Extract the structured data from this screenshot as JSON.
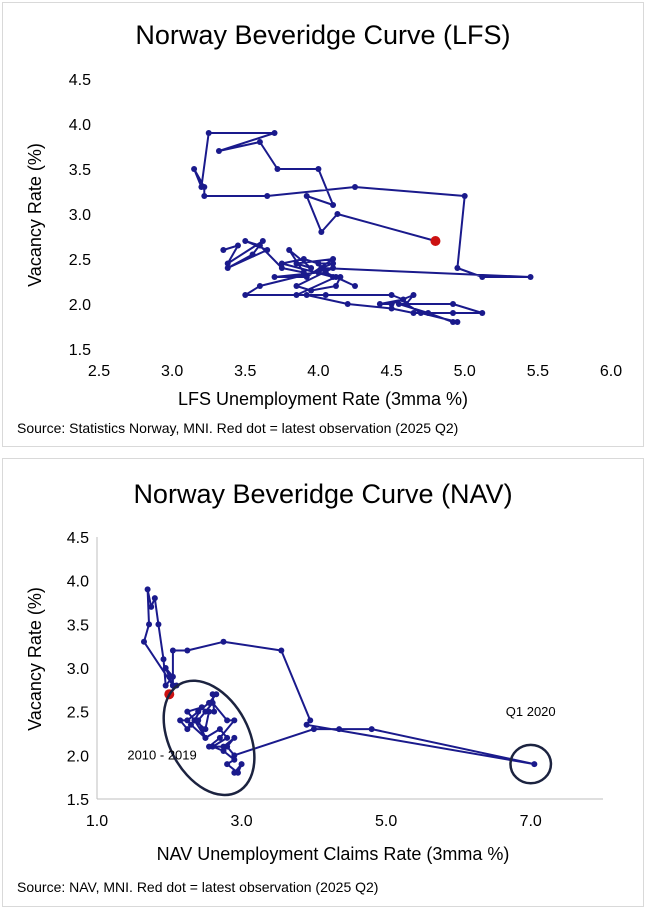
{
  "chart_data": [
    {
      "type": "scatter",
      "title": "Norway Beveridge Curve (LFS)",
      "xlabel": "LFS Unemployment  Rate (3mma %)",
      "ylabel": "Vacancy Rate (%)",
      "xlim": [
        2.5,
        6.0
      ],
      "ylim": [
        1.5,
        4.5
      ],
      "xticks": [
        "2.5",
        "3.0",
        "3.5",
        "4.0",
        "4.5",
        "5.0",
        "5.5",
        "6.0"
      ],
      "yticks": [
        "1.5",
        "2.0",
        "2.5",
        "3.0",
        "3.5",
        "4.0",
        "4.5"
      ],
      "source": "Source: Statistics Norway, MNI. Red dot = latest observation  (2025 Q2)",
      "series": [
        {
          "name": "Beveridge curve (LFS)",
          "color": "#1a1a8c",
          "points": [
            [
              3.35,
              2.6
            ],
            [
              3.45,
              2.65
            ],
            [
              3.38,
              2.45
            ],
            [
              3.62,
              2.7
            ],
            [
              3.55,
              2.55
            ],
            [
              3.38,
              2.4
            ],
            [
              3.65,
              2.6
            ],
            [
              3.5,
              2.7
            ],
            [
              3.6,
              2.65
            ],
            [
              3.75,
              2.4
            ],
            [
              3.9,
              2.35
            ],
            [
              3.8,
              2.6
            ],
            [
              3.95,
              2.4
            ],
            [
              3.85,
              2.45
            ],
            [
              4.1,
              2.5
            ],
            [
              3.92,
              2.3
            ],
            [
              3.7,
              2.3
            ],
            [
              4.0,
              2.35
            ],
            [
              4.15,
              2.3
            ],
            [
              4.12,
              2.2
            ],
            [
              3.95,
              2.15
            ],
            [
              3.85,
              2.2
            ],
            [
              4.1,
              2.4
            ],
            [
              3.6,
              2.2
            ],
            [
              3.5,
              2.1
            ],
            [
              4.05,
              2.1
            ],
            [
              4.5,
              2.1
            ],
            [
              4.58,
              2.05
            ],
            [
              4.42,
              2.0
            ],
            [
              4.5,
              2.0
            ],
            [
              4.65,
              2.1
            ],
            [
              4.6,
              2.0
            ],
            [
              4.7,
              1.9
            ],
            [
              4.95,
              1.8
            ],
            [
              4.92,
              1.8
            ],
            [
              4.75,
              1.9
            ],
            [
              4.55,
              2.0
            ],
            [
              4.92,
              2.0
            ],
            [
              5.12,
              1.9
            ],
            [
              4.92,
              1.9
            ],
            [
              4.65,
              1.9
            ],
            [
              4.5,
              1.95
            ],
            [
              4.2,
              2.0
            ],
            [
              3.92,
              2.1
            ],
            [
              3.85,
              2.1
            ],
            [
              4.12,
              2.3
            ],
            [
              4.25,
              2.2
            ],
            [
              4.05,
              2.35
            ],
            [
              4.1,
              2.3
            ],
            [
              3.75,
              2.45
            ],
            [
              3.9,
              2.5
            ],
            [
              4.0,
              2.45
            ],
            [
              4.1,
              2.45
            ],
            [
              4.02,
              2.4
            ],
            [
              5.45,
              2.3
            ],
            [
              5.12,
              2.3
            ],
            [
              4.95,
              2.4
            ],
            [
              5.0,
              3.2
            ],
            [
              4.25,
              3.3
            ],
            [
              3.65,
              3.2
            ],
            [
              3.22,
              3.2
            ],
            [
              3.22,
              3.3
            ],
            [
              3.15,
              3.5
            ],
            [
              3.2,
              3.3
            ],
            [
              3.25,
              3.9
            ],
            [
              3.7,
              3.9
            ],
            [
              3.32,
              3.7
            ],
            [
              3.6,
              3.8
            ],
            [
              3.72,
              3.5
            ],
            [
              4.0,
              3.5
            ],
            [
              4.1,
              3.1
            ],
            [
              3.92,
              3.2
            ],
            [
              4.02,
              2.8
            ],
            [
              4.13,
              3.0
            ],
            [
              4.8,
              2.7
            ]
          ],
          "latest": [
            4.8,
            2.7
          ],
          "latest_color": "#cc1111"
        }
      ]
    },
    {
      "type": "scatter",
      "title": "Norway Beveridge Curve (NAV)",
      "xlabel": "NAV Unemployment Claims Rate (3mma %)",
      "ylabel": "Vacancy Rate (%)",
      "xlim": [
        1.0,
        8.0
      ],
      "ylim": [
        1.5,
        4.5
      ],
      "xticks": [
        "1.0",
        "3.0",
        "5.0",
        "7.0"
      ],
      "yticks": [
        "1.5",
        "2.0",
        "2.5",
        "3.0",
        "3.5",
        "4.0",
        "4.5"
      ],
      "source": "Source: NAV, MNI.  Red dot = latest observation (2025 Q2)",
      "annotations": [
        {
          "text": "2010 - 2019",
          "x": 1.9,
          "y": 1.95
        },
        {
          "text": "Q1 2020",
          "x": 7.0,
          "y": 2.45
        }
      ],
      "ellipses": [
        {
          "cx": 2.55,
          "cy": 2.2,
          "rx": 0.55,
          "ry": 0.7,
          "rotation_deg": -28
        },
        {
          "cx": 7.0,
          "cy": 1.9,
          "rx": 0.28,
          "ry": 0.22,
          "rotation_deg": 0
        }
      ],
      "series": [
        {
          "name": "Beveridge curve (NAV)",
          "color": "#1a1a8c",
          "points": [
            [
              2.9,
              1.8
            ],
            [
              3.0,
              1.9
            ],
            [
              2.95,
              1.8
            ],
            [
              2.8,
              1.9
            ],
            [
              2.9,
              1.95
            ],
            [
              2.75,
              2.05
            ],
            [
              2.6,
              2.1
            ],
            [
              2.8,
              2.2
            ],
            [
              2.7,
              2.3
            ],
            [
              2.5,
              2.2
            ],
            [
              2.35,
              2.4
            ],
            [
              2.25,
              2.5
            ],
            [
              2.45,
              2.55
            ],
            [
              2.35,
              2.4
            ],
            [
              2.5,
              2.3
            ],
            [
              2.55,
              2.5
            ],
            [
              2.62,
              2.5
            ],
            [
              2.6,
              2.7
            ],
            [
              2.65,
              2.7
            ],
            [
              2.55,
              2.6
            ],
            [
              2.4,
              2.5
            ],
            [
              2.25,
              2.4
            ],
            [
              2.15,
              2.4
            ],
            [
              2.25,
              2.3
            ],
            [
              2.3,
              2.35
            ],
            [
              2.5,
              2.2
            ],
            [
              2.4,
              2.4
            ],
            [
              2.5,
              2.5
            ],
            [
              2.6,
              2.6
            ],
            [
              2.8,
              2.4
            ],
            [
              2.9,
              2.4
            ],
            [
              2.7,
              2.2
            ],
            [
              2.55,
              2.1
            ],
            [
              2.75,
              2.1
            ],
            [
              2.9,
              2.2
            ],
            [
              2.8,
              2.1
            ],
            [
              2.9,
              2.0
            ],
            [
              4.0,
              2.3
            ],
            [
              4.35,
              2.3
            ],
            [
              4.8,
              2.3
            ],
            [
              7.05,
              1.9
            ],
            [
              3.9,
              2.35
            ],
            [
              3.95,
              2.4
            ],
            [
              3.55,
              3.2
            ],
            [
              2.75,
              3.3
            ],
            [
              2.25,
              3.2
            ],
            [
              2.05,
              3.2
            ],
            [
              2.05,
              2.8
            ],
            [
              2.0,
              2.9
            ],
            [
              1.95,
              3.0
            ],
            [
              2.05,
              2.9
            ],
            [
              1.95,
              2.8
            ],
            [
              1.92,
              3.1
            ],
            [
              1.85,
              3.5
            ],
            [
              1.8,
              3.8
            ],
            [
              1.75,
              3.7
            ],
            [
              1.7,
              3.9
            ],
            [
              1.72,
              3.5
            ],
            [
              1.65,
              3.3
            ],
            [
              2.05,
              2.8
            ],
            [
              2.1,
              2.8
            ],
            [
              2.0,
              2.7
            ]
          ],
          "latest": [
            2.0,
            2.7
          ],
          "latest_color": "#cc1111"
        }
      ]
    }
  ]
}
